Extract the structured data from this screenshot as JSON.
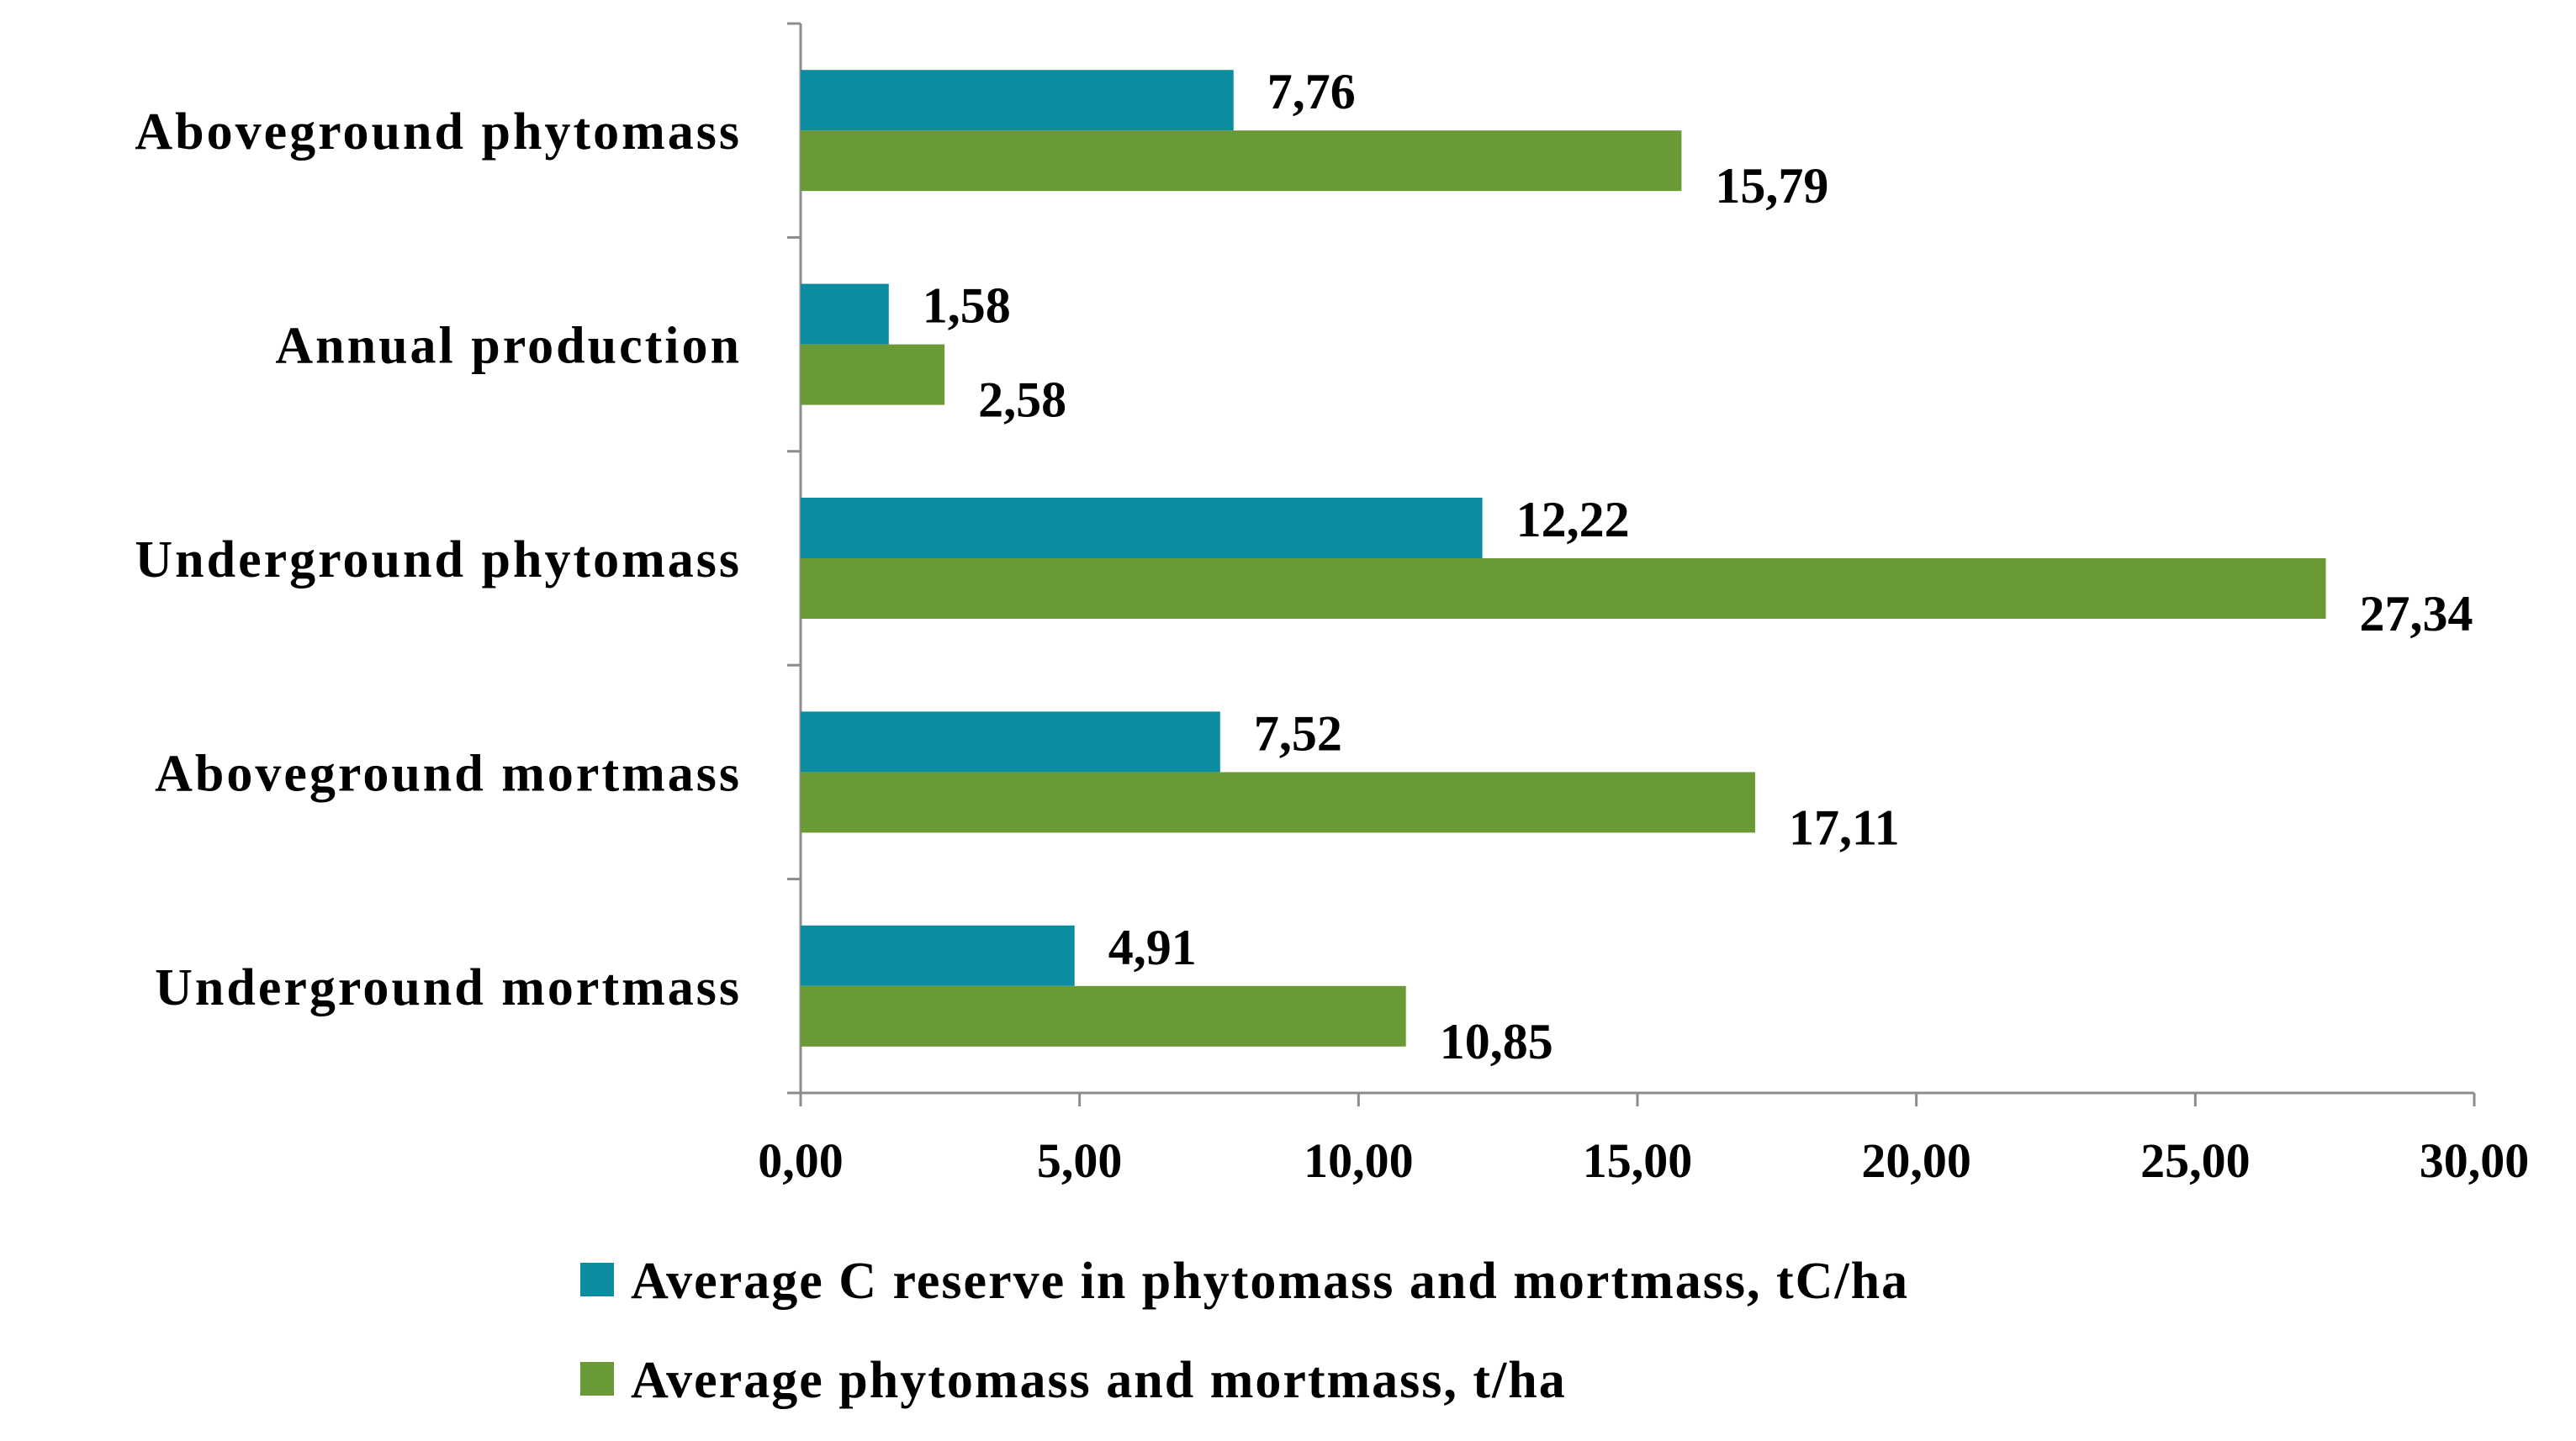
{
  "chart_data": {
    "type": "bar",
    "orientation": "horizontal",
    "categories": [
      "Aboveground phytomass",
      "Annual production",
      "Underground phytomass",
      "Aboveground mortmass",
      "Underground mortmass"
    ],
    "series": [
      {
        "name": "Average C reserve in phytomass and mortmass, tC/ha",
        "color": "#0B8CA0",
        "values": [
          7.76,
          1.58,
          12.22,
          7.52,
          4.91
        ],
        "labels": [
          "7,76",
          "1,58",
          "12,22",
          "7,52",
          "4,91"
        ]
      },
      {
        "name": "Average phytomass and mortmass, t/ha",
        "color": "#6A9A35",
        "values": [
          15.79,
          2.58,
          27.34,
          17.11,
          10.85
        ],
        "labels": [
          "15,79",
          "2,58",
          "27,34",
          "17,11",
          "10,85"
        ]
      }
    ],
    "xlim": [
      0,
      30
    ],
    "xticks": [
      0,
      5,
      10,
      15,
      20,
      25,
      30
    ],
    "xtick_labels": [
      "0,00",
      "5,00",
      "10,00",
      "15,00",
      "20,00",
      "25,00",
      "30,00"
    ],
    "title": "",
    "xlabel": "",
    "ylabel": "",
    "grid": false,
    "legend_position": "bottom"
  }
}
